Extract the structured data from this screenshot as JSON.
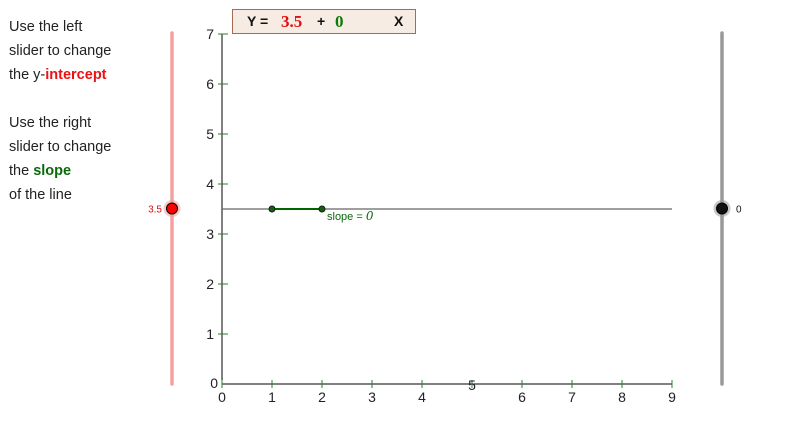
{
  "instructions": {
    "intercept_text_1": "Use the left",
    "intercept_text_2": "slider to change",
    "intercept_text_3": "the y-",
    "intercept_word": "intercept",
    "slope_text_1": "Use the right",
    "slope_text_2": "slider to change",
    "slope_text_3": "the ",
    "slope_word": "slope",
    "slope_text_4": "of the line"
  },
  "formula": {
    "y_label": "Y =",
    "intercept_value": "3.5",
    "plus": "+",
    "slope_value": "0",
    "x_label": "X"
  },
  "graph": {
    "x_ticks": [
      "0",
      "1",
      "2",
      "3",
      "4",
      "5",
      "6",
      "7",
      "8",
      "9"
    ],
    "y_ticks": [
      "0",
      "1",
      "2",
      "3",
      "4",
      "5",
      "6",
      "7"
    ],
    "x_range": [
      0,
      9
    ],
    "y_range": [
      0,
      7
    ],
    "intercept": 3.5,
    "slope": 0,
    "slope_label": "slope = ",
    "slope_label_value": "0",
    "slope_segment_x": [
      1,
      2
    ]
  },
  "sliders": {
    "intercept": {
      "value": 3.5,
      "min": 0,
      "max": 7,
      "label": "3.5"
    },
    "slope": {
      "value": 0,
      "min": -1,
      "max": 1,
      "label": "0"
    }
  },
  "colors": {
    "intercept": "#ff0000",
    "intercept_track": "#f5a0a0",
    "slope": "#006600",
    "slope_track": "#999999",
    "axis": "#000000",
    "tick": "#2e7d2e",
    "line": "#666666"
  }
}
